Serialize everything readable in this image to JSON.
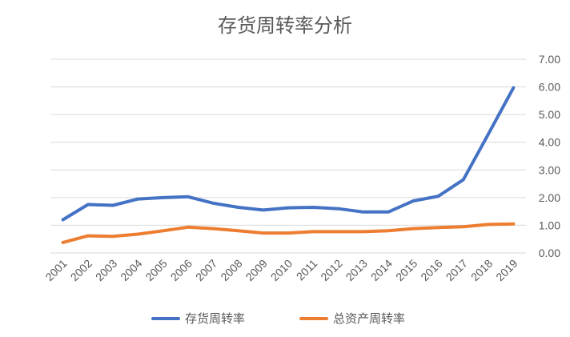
{
  "chart_data": {
    "type": "line",
    "title": "存货周转率分析",
    "xlabel": "",
    "ylabel": "",
    "categories": [
      "2001",
      "2002",
      "2003",
      "2004",
      "2005",
      "2006",
      "2007",
      "2008",
      "2009",
      "2010",
      "2011",
      "2012",
      "2013",
      "2014",
      "2015",
      "2016",
      "2017",
      "2018",
      "2019"
    ],
    "ylim": [
      0,
      7
    ],
    "yticks": [
      "0.00",
      "1.00",
      "2.00",
      "3.00",
      "4.00",
      "5.00",
      "6.00",
      "7.00"
    ],
    "grid": true,
    "legend_position": "bottom",
    "y_axis_side": "right",
    "series": [
      {
        "name": "存货周转率",
        "color": "#4472C4",
        "values": [
          1.2,
          1.75,
          1.72,
          1.95,
          2.0,
          2.03,
          1.8,
          1.65,
          1.55,
          1.63,
          1.65,
          1.6,
          1.48,
          1.48,
          1.88,
          2.05,
          2.65,
          4.3,
          5.97
        ]
      },
      {
        "name": "总资产周转率",
        "color": "#ED7D31",
        "values": [
          0.38,
          0.62,
          0.6,
          0.68,
          0.8,
          0.93,
          0.88,
          0.8,
          0.72,
          0.72,
          0.77,
          0.77,
          0.77,
          0.8,
          0.88,
          0.92,
          0.95,
          1.03,
          1.05
        ]
      }
    ]
  }
}
